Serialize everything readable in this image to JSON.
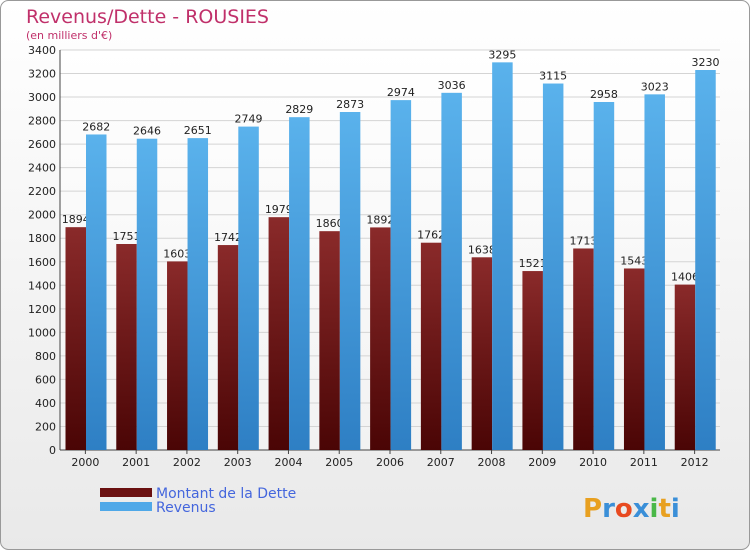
{
  "chart_data": {
    "type": "bar",
    "title": "Revenus/Dette - ROUSIES",
    "subtitle": "(en milliers d'€)",
    "categories": [
      "2000",
      "2001",
      "2002",
      "2003",
      "2004",
      "2005",
      "2006",
      "2007",
      "2008",
      "2009",
      "2010",
      "2011",
      "2012"
    ],
    "series": [
      {
        "name": "Montant de la Dette",
        "color": "#7a1a1a",
        "values": [
          1894,
          1751,
          1603,
          1742,
          1979,
          1860,
          1892,
          1762,
          1638,
          1521,
          1713,
          1543,
          1406
        ],
        "labels": [
          "1894",
          "1751",
          "1603",
          "1742",
          "1979",
          "1860",
          "1892",
          "1762",
          "1638",
          "1521",
          "1713",
          "1543",
          "1406"
        ]
      },
      {
        "name": "Revenus",
        "color": "#4fa8e8",
        "values": [
          2682,
          2646,
          2651,
          2749,
          2829,
          2873,
          2974,
          3036,
          3295,
          3115,
          2958,
          3023,
          3230
        ],
        "labels": [
          "2682",
          "2646",
          "2651",
          "2749",
          "2829",
          "2873",
          "2974",
          "3036",
          "3295",
          "3115",
          "2958",
          "3023",
          "3230"
        ]
      }
    ],
    "ylim": [
      0,
      3400
    ],
    "yticks": [
      "0",
      "200",
      "400",
      "600",
      "800",
      "1000",
      "1200",
      "1400",
      "1600",
      "1800",
      "2000",
      "2200",
      "2400",
      "2600",
      "2800",
      "3000",
      "3200",
      "3400"
    ],
    "grid": true,
    "legend_position": "bottom-left"
  },
  "branding": {
    "logo_letters": [
      "P",
      "r",
      "o",
      "x",
      "i",
      "t",
      "i"
    ],
    "logo_colors": [
      "#e8a020",
      "#3a8fd8",
      "#e84a20",
      "#3a8fd8",
      "#4ab848",
      "#e8a020",
      "#3a8fd8"
    ]
  }
}
